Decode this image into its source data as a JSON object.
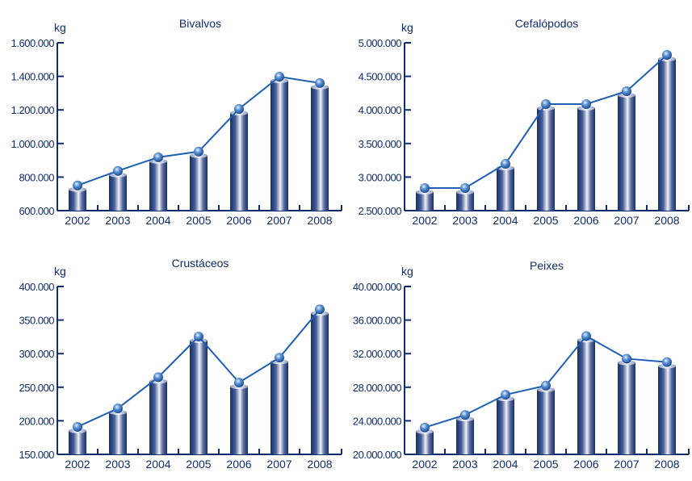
{
  "colors": {
    "axis": "#0f2c6e",
    "line": "#1d5fb5",
    "bar_dark": "#132f6b",
    "bar_light": "#e8ecf6",
    "marker": "#2f6fc4"
  },
  "chart_data": [
    {
      "type": "bar+line",
      "title": "Bivalvos",
      "ylabel": "kg",
      "categories": [
        "2002",
        "2003",
        "2004",
        "2005",
        "2006",
        "2007",
        "2008"
      ],
      "values": [
        750000,
        837000,
        918000,
        952000,
        1206000,
        1398000,
        1360000
      ],
      "ylim": [
        600000,
        1600000
      ],
      "yticks": [
        "600.000",
        "800.000",
        "1.000.000",
        "1.200.000",
        "1.400.000",
        "1.600.000"
      ]
    },
    {
      "type": "bar+line",
      "title": "Cefalópodos",
      "ylabel": "kg",
      "categories": [
        "2002",
        "2003",
        "2004",
        "2005",
        "2006",
        "2007",
        "2008"
      ],
      "values": [
        2837000,
        2837000,
        3197000,
        4087000,
        4087000,
        4279000,
        4820000
      ],
      "ylim": [
        2500000,
        5000000
      ],
      "yticks": [
        "2.500.000",
        "3.000.000",
        "3.500.000",
        "4.000.000",
        "4.500.000",
        "5.000.000"
      ]
    },
    {
      "type": "bar+line",
      "title": "Crustáceos",
      "ylabel": "kg",
      "categories": [
        "2002",
        "2003",
        "2004",
        "2005",
        "2006",
        "2007",
        "2008"
      ],
      "values": [
        191000,
        218500,
        265000,
        325500,
        257000,
        294000,
        366000
      ],
      "ylim": [
        150000,
        400000
      ],
      "yticks": [
        "150.000",
        "200.000",
        "250.000",
        "300.000",
        "350.000",
        "400.000"
      ]
    },
    {
      "type": "bar+line",
      "title": "Peixes",
      "ylabel": "kg",
      "categories": [
        "2002",
        "2003",
        "2004",
        "2005",
        "2006",
        "2007",
        "2008"
      ],
      "values": [
        23200000,
        24700000,
        27100000,
        28200000,
        34100000,
        31400000,
        31000000
      ],
      "ylim": [
        20000000,
        40000000
      ],
      "yticks": [
        "20.000.000",
        "24.000.000",
        "28.000.000",
        "32.000.000",
        "36.000.000",
        "40.000.000"
      ]
    }
  ]
}
